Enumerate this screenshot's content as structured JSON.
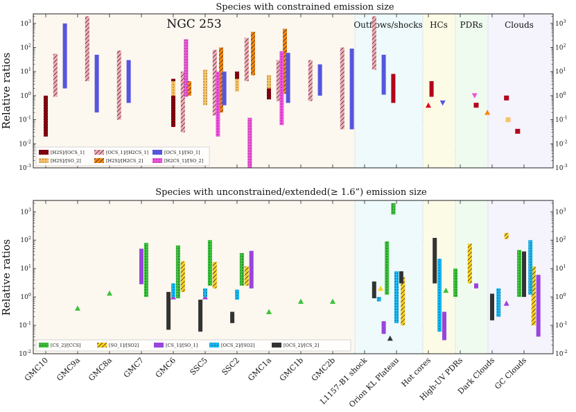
{
  "chart_data": [
    {
      "type": "range-bar",
      "title": "Species with constrained emission size",
      "ylabel": "Relative ratios",
      "yscale": "log",
      "ylim": [
        0.001,
        2500
      ],
      "y_ticks": [
        "10^-3",
        "10^-2",
        "10^-1",
        "10^0",
        "10^1",
        "10^2",
        "10^3"
      ],
      "panel_label": "NGC 253",
      "region_labels": [
        "Outflows/shocks",
        "HCs",
        "PDRs",
        "Clouds"
      ],
      "legend": [
        {
          "name": "[H2S]/[OCS_1]",
          "color": "#b3001b",
          "pattern": "crosshatch"
        },
        {
          "name": "[H2S]/[SO_2]",
          "color": "#f6c36b",
          "pattern": "dots"
        },
        {
          "name": "[OCS_1]/[H2CS_1]",
          "color": "#f4aab5",
          "pattern": "hatch"
        },
        {
          "name": "[H2S]/[H2CS_2]",
          "color": "#f7860f",
          "pattern": "hatch"
        },
        {
          "name": "[OCS_1]/[SO_1]",
          "color": "#5555e0",
          "pattern": "none"
        },
        {
          "name": "[H2CS_1]/[SO_2]",
          "color": "#ee55dd",
          "pattern": "dots"
        }
      ],
      "series": [
        {
          "name": "[H2S]/[OCS_1]",
          "ranges": [
            [
              0,
              0.02,
              1.0
            ],
            [
              4,
              0.05,
              5
            ],
            [
              5,
              0.9,
              10
            ],
            [
              6,
              4,
              10
            ],
            [
              7,
              0.7,
              7
            ]
          ],
          "scatter": [
            [
              10.9,
              0.5,
              8,
              12
            ],
            [
              12.1,
              0.9,
              4,
              6
            ],
            [
              13.5,
              0.4,
              null,
              null
            ],
            [
              14.45,
              0.8,
              null,
              null
            ],
            [
              14.8,
              0.033,
              null,
              null
            ]
          ]
        },
        {
          "name": "[H2S]/[SO_2]",
          "ranges": [
            [
              4,
              1.0,
              4
            ],
            [
              5,
              0.4,
              12
            ],
            [
              6,
              1.5,
              5
            ],
            [
              7,
              2,
              7
            ]
          ],
          "scatter": [
            [
              14.5,
              0.1,
              null,
              null
            ]
          ]
        },
        {
          "name": "[OCS_1]/[H2CS_1]",
          "ranges": [
            [
              0.3,
              0.9,
              55
            ],
            [
              1.3,
              4,
              2000
            ],
            [
              2.3,
              0.1,
              75
            ],
            [
              4.3,
              0.03,
              10
            ],
            [
              5.3,
              0.15,
              80
            ],
            [
              6.3,
              4,
              250
            ],
            [
              7.3,
              0.6,
              30
            ],
            [
              8.3,
              0.6,
              30
            ],
            [
              9.3,
              0.04,
              100
            ],
            [
              10.3,
              12,
              2000
            ]
          ],
          "scatter": []
        },
        {
          "name": "[H2S]/[H2CS_2]",
          "ranges": [
            [
              4.5,
              1,
              4
            ],
            [
              5.5,
              0.2,
              100
            ],
            [
              6.5,
              7,
              450
            ],
            [
              7.5,
              1.2,
              600
            ]
          ],
          "scatter": []
        },
        {
          "name": "[OCS_1]/[SO_1]",
          "ranges": [
            [
              0.6,
              2,
              1000
            ],
            [
              1.6,
              0.2,
              50
            ],
            [
              2.6,
              0.5,
              30
            ],
            [
              5.6,
              0.4,
              10
            ],
            [
              7.6,
              0.5,
              60
            ],
            [
              8.6,
              1,
              20
            ],
            [
              9.6,
              0.04,
              90
            ],
            [
              10.6,
              1.1,
              50
            ]
          ],
          "scatter": []
        },
        {
          "name": "[H2CS_1]/[SO_2]",
          "ranges": [
            [
              4.4,
              0.9,
              220
            ],
            [
              5.4,
              0.02,
              10
            ],
            [
              6.4,
              0.001,
              0.12
            ],
            [
              7.4,
              0.06,
              70
            ]
          ],
          "scatter": []
        }
      ]
    },
    {
      "type": "range-bar",
      "title": "Species with unconstrained/extended(≥ 1.6”) emission size",
      "ylabel": "Relative ratios",
      "yscale": "log",
      "ylim": [
        0.01,
        2500
      ],
      "y_ticks": [
        "10^-2",
        "10^-1",
        "10^0",
        "10^1",
        "10^2",
        "10^3"
      ],
      "categories": [
        "GMC10",
        "GMC9a",
        "GMC8a",
        "GMC7",
        "GMC6",
        "SSC5",
        "SSC2",
        "GMC1a",
        "GMC1b",
        "GMC2b",
        "L1157-B1 shock",
        "Orion KL Plateau",
        "Hot cores",
        "High-UV PDRs",
        "Dark Clouds",
        "GC Clouds"
      ],
      "legend": [
        {
          "name": "[CS_2]/[CCS]",
          "color": "#3cc23c",
          "pattern": "dots"
        },
        {
          "name": "[SO_1]/[SO2]",
          "color": "#ffd11a",
          "pattern": "hatch"
        },
        {
          "name": "[CS_1]/[SO_1]",
          "color": "#9944dd",
          "pattern": "none"
        },
        {
          "name": "[OCS_2]/[SO2]",
          "color": "#1ab8f0",
          "pattern": "dots"
        },
        {
          "name": "[OCS_2]/[CS_2]",
          "color": "#333333",
          "pattern": "none"
        }
      ],
      "series": [
        {
          "name": "[CS_2]/[CCS]",
          "ranges": [
            [
              3.15,
              1,
              80
            ],
            [
              4.15,
              0.9,
              65
            ],
            [
              5.15,
              2.5,
              100
            ],
            [
              6.15,
              2.5,
              35
            ],
            [
              10.7,
              1.2,
              90
            ],
            [
              10.9,
              800,
              2000
            ],
            [
              12.85,
              1,
              10
            ],
            [
              14.85,
              1,
              45
            ]
          ],
          "points": [
            [
              1,
              0.4
            ],
            [
              2,
              1.35
            ],
            [
              7,
              0.3
            ],
            [
              8,
              0.7
            ],
            [
              9,
              0.7
            ],
            [
              12.55,
              1.7
            ]
          ]
        },
        {
          "name": "[SO_1]/[SO2]",
          "ranges": [
            [
              4.3,
              1.5,
              18
            ],
            [
              5.3,
              2,
              17
            ],
            [
              6.3,
              2.5,
              12
            ],
            [
              11.2,
              0.1,
              5
            ],
            [
              13.3,
              3,
              75
            ],
            [
              14.45,
              110,
              180
            ],
            [
              15.3,
              0.1,
              12
            ]
          ],
          "points": [
            [
              10.5,
              2.0
            ]
          ]
        },
        {
          "name": "[CS_1]/[SO_1]",
          "ranges": [
            [
              3.0,
              2.8,
              50
            ],
            [
              6.45,
              2,
              42
            ],
            [
              10.6,
              0.05,
              0.14
            ],
            [
              12.5,
              0.03,
              0.3
            ],
            [
              13.5,
              2,
              3
            ],
            [
              15.45,
              0.04,
              6
            ]
          ],
          "points": [
            [
              4.0,
              1.0
            ],
            [
              5.0,
              1.0
            ],
            [
              14.45,
              0.6
            ]
          ]
        },
        {
          "name": "[OCS_2]/[SO2]",
          "ranges": [
            [
              4.0,
              1,
              3
            ],
            [
              5.0,
              1,
              2
            ],
            [
              6.0,
              0.8,
              1.8
            ],
            [
              10.45,
              0.7,
              1
            ],
            [
              11.0,
              0.12,
              8
            ],
            [
              12.35,
              0.06,
              22
            ],
            [
              14.2,
              0.2,
              2
            ],
            [
              15.2,
              1.2,
              100
            ]
          ],
          "points": []
        },
        {
          "name": "[OCS_2]/[CS_2]",
          "ranges": [
            [
              3.85,
              0.07,
              1.5
            ],
            [
              4.85,
              0.06,
              0.8
            ],
            [
              5.85,
              0.12,
              0.3
            ],
            [
              10.3,
              0.9,
              3.5
            ],
            [
              11.15,
              3,
              8
            ],
            [
              12.2,
              3,
              120
            ],
            [
              14.0,
              0.15,
              1.3
            ],
            [
              15.0,
              1,
              40
            ]
          ],
          "points": [
            [
              10.8,
              0.035
            ]
          ]
        }
      ]
    }
  ]
}
